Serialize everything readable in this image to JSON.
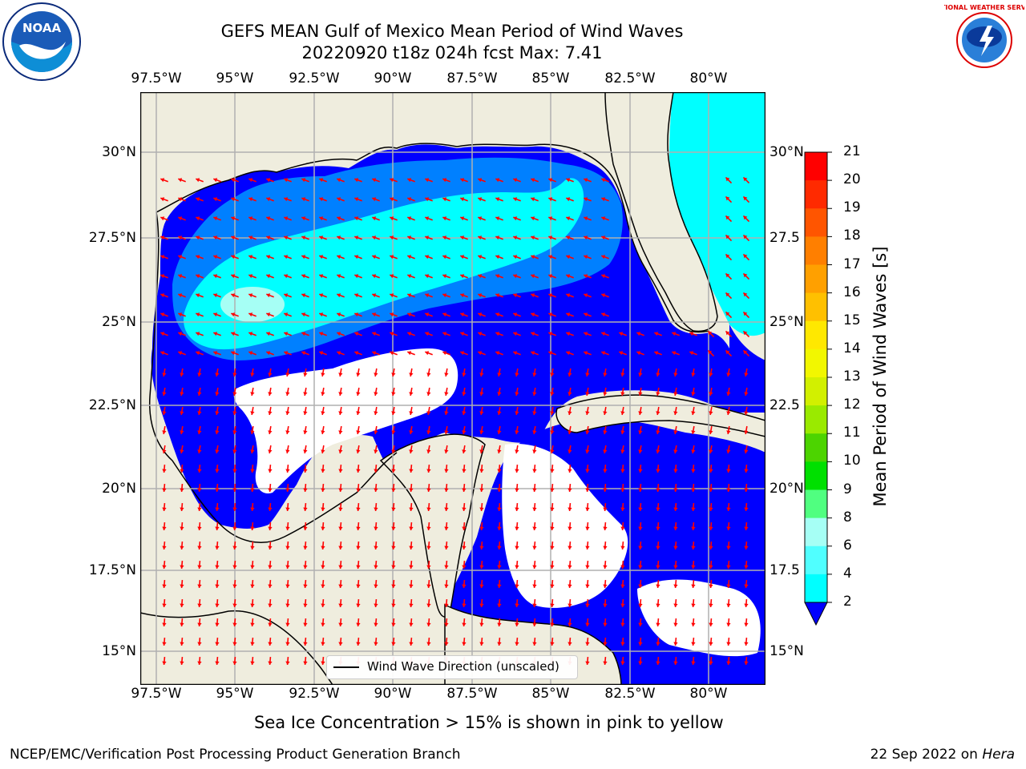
{
  "title_line1": "GEFS MEAN Gulf of Mexico Mean Period of Wind Waves",
  "title_line2": "20220920 t18z 024h fcst   Max: 7.41",
  "lon_ticks": [
    "97.5°W",
    "95°W",
    "92.5°W",
    "90°W",
    "87.5°W",
    "85°W",
    "82.5°W",
    "80°W"
  ],
  "lat_ticks_left": [
    "30°N",
    "27.5°N",
    "25°N",
    "22.5°N",
    "20°N",
    "17.5°N",
    "15°N"
  ],
  "lat_ticks_right": [
    "30°N",
    "27.5",
    "25°N",
    "22.5",
    "20°N",
    "17.5",
    "15°N"
  ],
  "legend_label": "Wind Wave Direction (unscaled)",
  "colorbar": {
    "title": "Mean Period of Wind Waves [s]",
    "labels": [
      "21",
      "20",
      "19",
      "18",
      "17",
      "16",
      "15",
      "14",
      "13",
      "12",
      "11",
      "10",
      "9",
      "8",
      "6",
      "4",
      "2"
    ],
    "colors": [
      "#ff0000",
      "#ff2a00",
      "#ff5500",
      "#ff7f00",
      "#ffa000",
      "#ffc000",
      "#ffe800",
      "#f2f700",
      "#d2f000",
      "#9aea00",
      "#4cd400",
      "#00e000",
      "#50ff80",
      "#a6fff5",
      "#50ffff",
      "#00ffff",
      "#0080ff"
    ],
    "extend_color": "#0000ff"
  },
  "subtitle": "Sea Ice Concentration > 15% is shown in pink to yellow",
  "footer_left": "NCEP/EMC/Verification Post Processing Product Generation Branch",
  "footer_right_date": "22 Sep 2022 on",
  "footer_right_machine": "Hera",
  "logos": {
    "noaa": "NOAA",
    "nws_ring": "NATIONAL WEATHER SERVICE"
  },
  "colors": {
    "land": "#efedde",
    "ocean_low": "#0000ff",
    "ocean_mid": "#0080ff",
    "ocean_high": "#00ffff",
    "arrow": "#ff0000"
  }
}
